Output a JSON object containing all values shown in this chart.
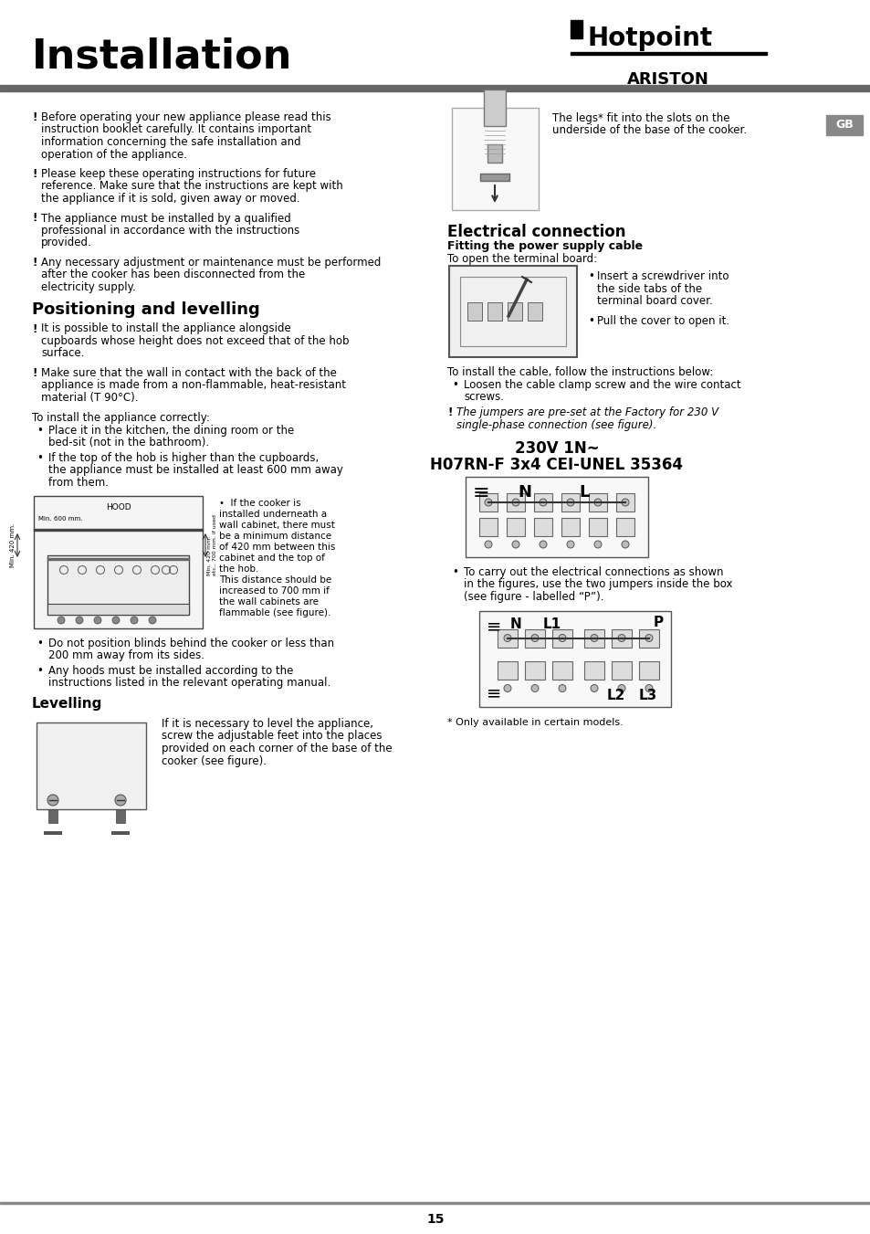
{
  "page_bg": "#ffffff",
  "header_title": "Installation",
  "header_title_fontsize": 32,
  "brand_name": "Hotpoint",
  "brand_sub": "ARISTON",
  "gb_text": "GB",
  "page_number": "15",
  "body_fontsize": 8.5,
  "warning_paragraphs": [
    "Before operating your new appliance please read this instruction booklet carefully. It contains important information concerning the safe installation and operation of the appliance.",
    "Please keep these operating instructions for future reference. Make sure that the instructions are kept with the appliance if it is sold, given away or moved.",
    "The appliance must be installed by a qualified professional in accordance with the instructions provided.",
    "Any necessary adjustment or maintenance must be performed after the cooker has been disconnected from the electricity supply."
  ],
  "positioning_title": "Positioning and levelling",
  "pos_warnings": [
    "It is possible to install the appliance alongside cupboards whose height does not exceed that of the hob surface.",
    "Make sure that the wall in contact with the back of the appliance is made from a non-flammable, heat-resistant material (T 90°C)."
  ],
  "install_intro": "To install the appliance correctly:",
  "install_bullets": [
    "Place it in the kitchen, the dining room or the bed-sit (not in the bathroom).",
    "If the top of the hob is higher than the cupboards, the appliance must be installed at least 600 mm away from them."
  ],
  "hood_notes": [
    "•  If the cooker is",
    "installed underneath a",
    "wall cabinet, there must",
    "be a minimum distance",
    "of 420 mm between this",
    "cabinet and the top of",
    "the hob.",
    "This distance should be",
    "increased to 700 mm if",
    "the wall cabinets are",
    "flammable (see figure)."
  ],
  "extra_bullets": [
    "Do not position blinds behind the cooker or less than 200 mm away from its sides.",
    "Any hoods must be installed according to the instructions listed in the relevant operating manual."
  ],
  "levelling_title": "Levelling",
  "levelling_text": "If it is necessary to level the appliance, screw the adjustable feet into the places provided on each corner of the base of the cooker (see figure).",
  "leg_text": "The legs* fit into the slots on the underside of the base of the cooker.",
  "electrical_title": "Electrical connection",
  "electrical_sub": "Fitting the power supply cable",
  "electrical_intro": "To open the terminal board:",
  "electrical_bullets": [
    "Insert a screwdriver into the side tabs of the terminal board cover.",
    "Pull the cover to open it."
  ],
  "cable_intro": "To install the cable, follow the instructions below:",
  "cable_bullets": [
    "Loosen the cable clamp screw and the wire contact screws."
  ],
  "jumper_note": "The jumpers are pre-set at the Factory for 230 V single-phase connection (see figure).",
  "voltage_line1": "230V 1N~",
  "voltage_line2": "H07RN-F 3x4 CEI-UNEL 35364",
  "jumper_instruction": "To carry out the electrical connections as shown in the figures, use the two jumpers inside the box (see figure - labelled “P”).",
  "footnote": "* Only available in certain models."
}
